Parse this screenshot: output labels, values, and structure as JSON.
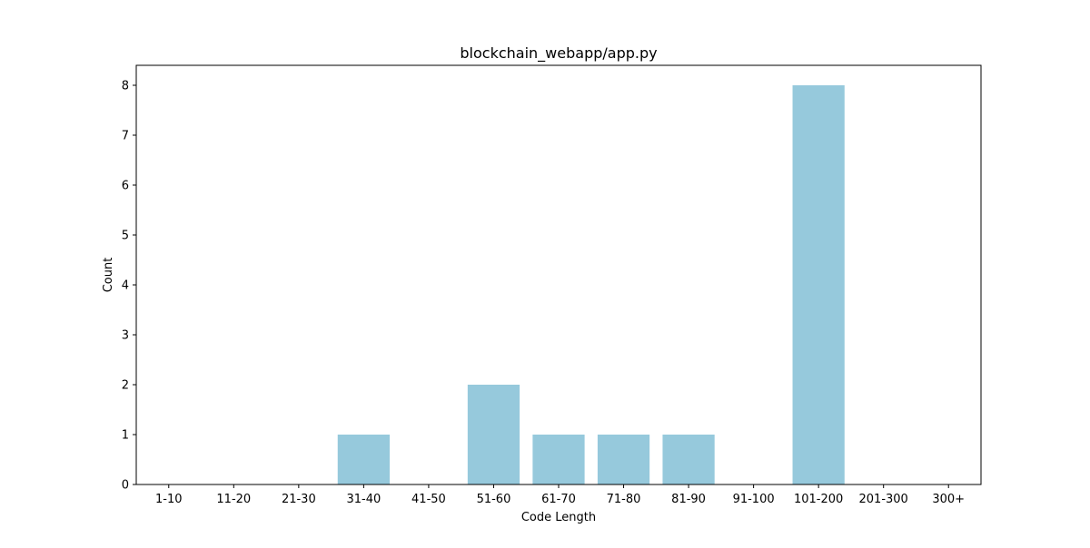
{
  "chart_data": {
    "type": "bar",
    "title": "blockchain_webapp/app.py",
    "xlabel": "Code Length",
    "ylabel": "Count",
    "categories": [
      "1-10",
      "11-20",
      "21-30",
      "31-40",
      "41-50",
      "51-60",
      "61-70",
      "71-80",
      "81-90",
      "91-100",
      "101-200",
      "201-300",
      "300+"
    ],
    "values": [
      0,
      0,
      0,
      1,
      0,
      2,
      1,
      1,
      1,
      0,
      8,
      0,
      0
    ],
    "ylim": [
      0,
      8.4
    ],
    "yticks": [
      0,
      1,
      2,
      3,
      4,
      5,
      6,
      7,
      8
    ],
    "grid": false,
    "bar_color": "#96c9dc"
  }
}
